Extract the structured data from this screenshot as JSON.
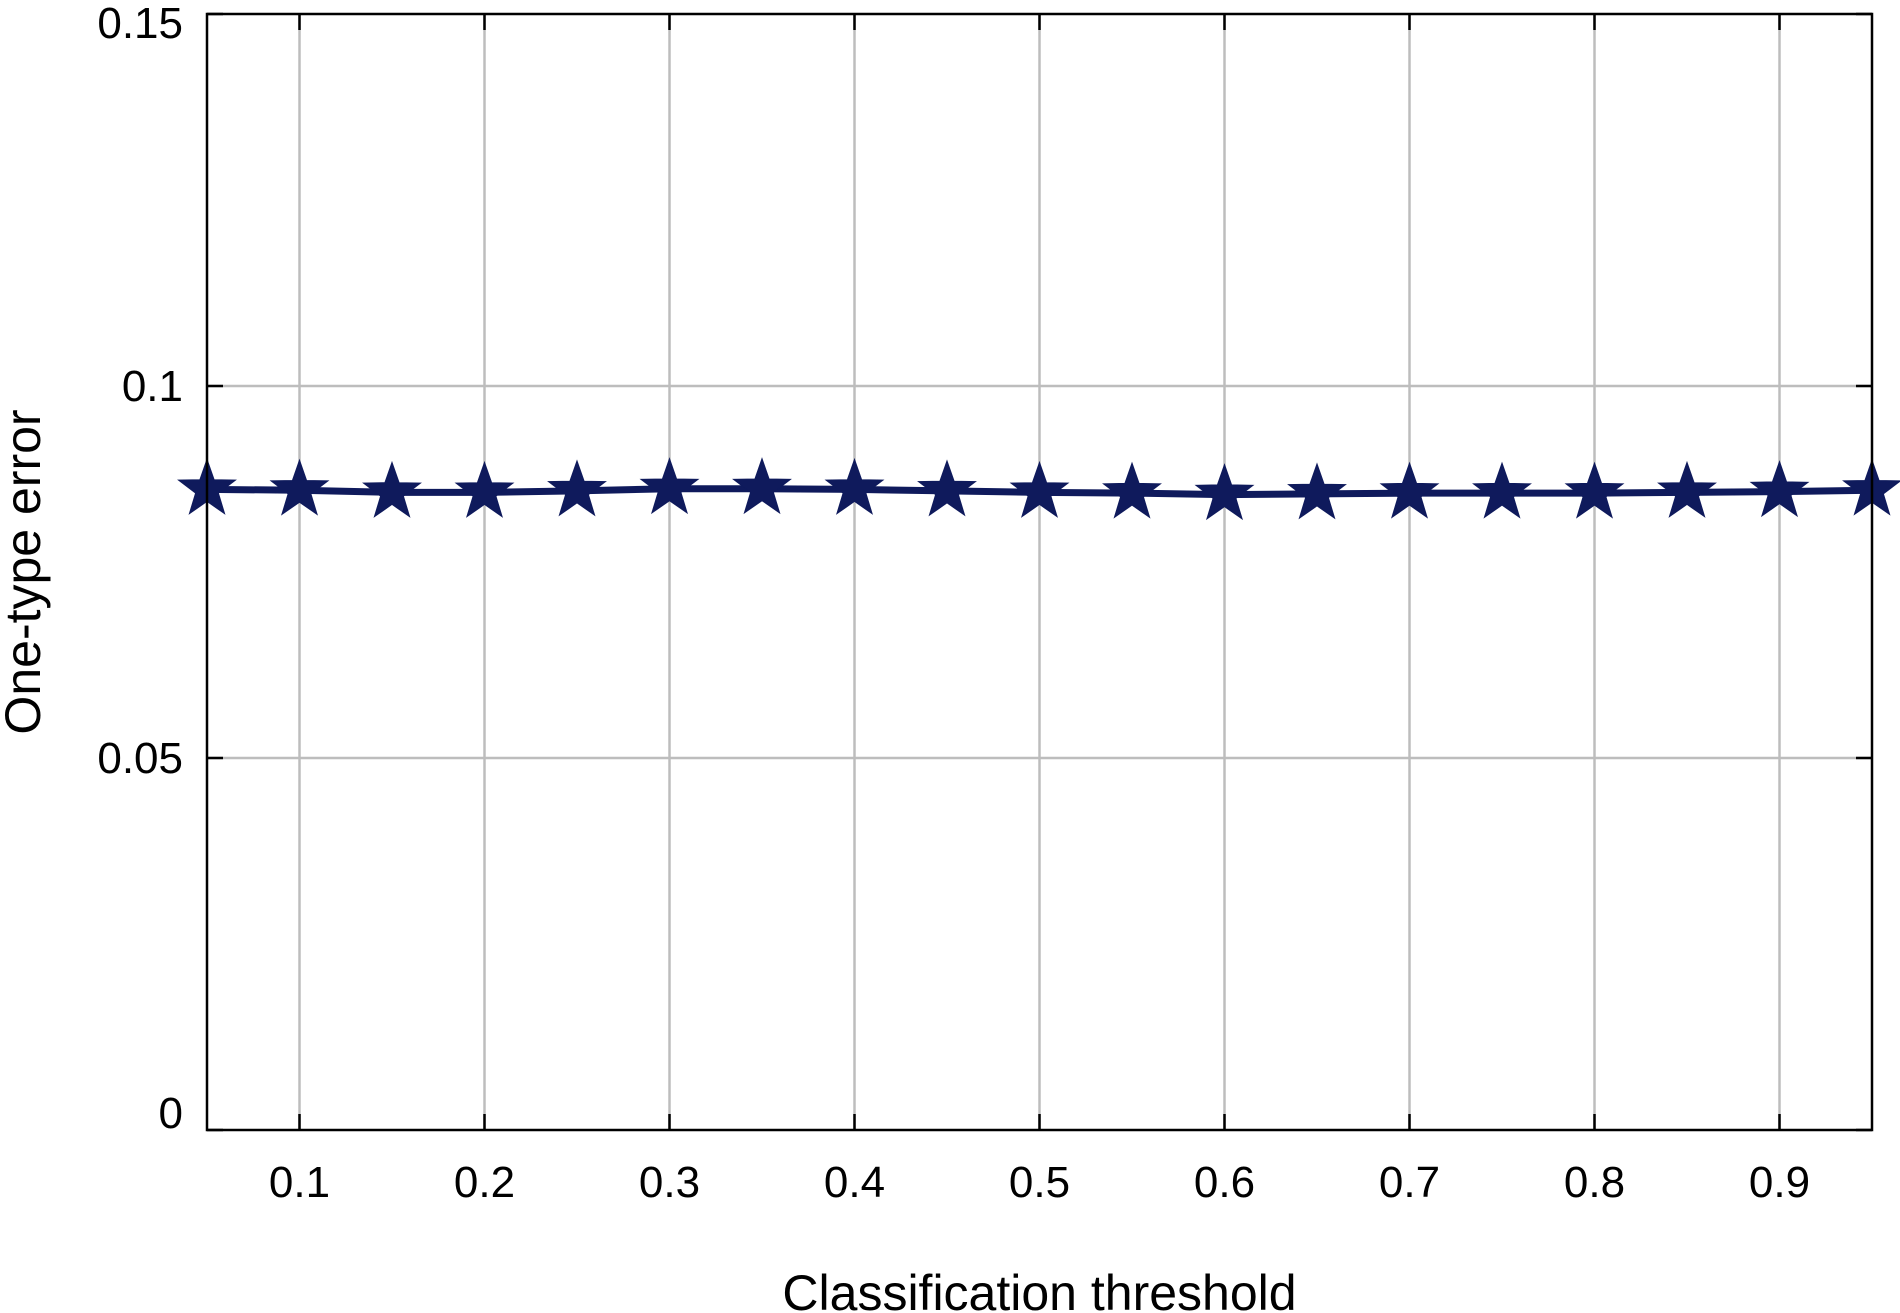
{
  "chart_data": {
    "type": "line",
    "title": "",
    "xlabel": "Classification threshold",
    "ylabel": "One-type error",
    "xlim": [
      0.05,
      0.95
    ],
    "ylim": [
      0,
      0.15
    ],
    "x_ticks": [
      0.1,
      0.2,
      0.3,
      0.4,
      0.5,
      0.6,
      0.7,
      0.8,
      0.9
    ],
    "x_tick_labels": [
      "0.1",
      "0.2",
      "0.3",
      "0.4",
      "0.5",
      "0.6",
      "0.7",
      "0.8",
      "0.9"
    ],
    "y_ticks": [
      0,
      0.05,
      0.1,
      0.15
    ],
    "y_tick_labels": [
      "0",
      "0.05",
      "0.1",
      "0.15"
    ],
    "grid": true,
    "legend": "none",
    "series": [
      {
        "marker": "star",
        "color": "#0f1a5c",
        "x": [
          0.05,
          0.1,
          0.15,
          0.2,
          0.25,
          0.3,
          0.35,
          0.4,
          0.45,
          0.5,
          0.55,
          0.6,
          0.65,
          0.7,
          0.75,
          0.8,
          0.85,
          0.9,
          0.95
        ],
        "y": [
          0.0861,
          0.086,
          0.0857,
          0.0857,
          0.0859,
          0.0862,
          0.0862,
          0.0861,
          0.0859,
          0.0857,
          0.0856,
          0.0854,
          0.0855,
          0.0856,
          0.0856,
          0.0856,
          0.0857,
          0.0858,
          0.086
        ]
      }
    ]
  }
}
